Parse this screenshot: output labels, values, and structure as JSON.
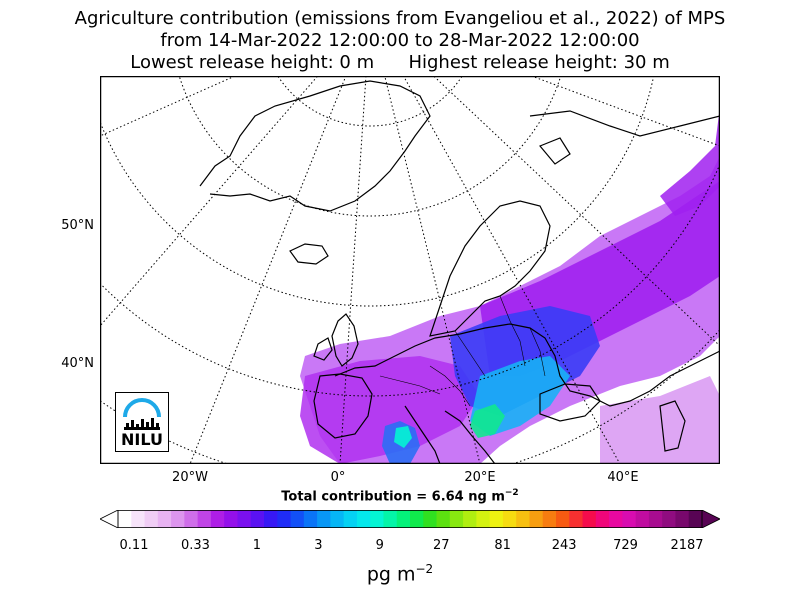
{
  "title": {
    "line1": "Agriculture contribution (emissions from Evangeliou et al., 2022) of MPS",
    "line2": "from 14-Mar-2022 12:00:00 to 28-Mar-2022 12:00:00",
    "line3": "Lowest release height: 0 m      Highest release height: 30 m"
  },
  "lat_labels": [
    "50°N",
    "40°N"
  ],
  "lon_labels": [
    "20°W",
    "0°",
    "20°E",
    "40°E"
  ],
  "total_label": "Total contribution = 6.64 ng m",
  "total_exp": "−2",
  "colorbar": {
    "ticks": [
      "0.11",
      "0.33",
      "1",
      "3",
      "9",
      "27",
      "81",
      "243",
      "729",
      "2187"
    ],
    "units_base": "pg m",
    "units_exp": "−2",
    "colors": [
      "#ffffff",
      "#f7e4fa",
      "#f0cdf5",
      "#e8b3f2",
      "#dd95ee",
      "#cf6ee9",
      "#c044e6",
      "#ae1ee6",
      "#9410ea",
      "#7a10ef",
      "#5a12f2",
      "#3718f5",
      "#1f2cf7",
      "#1250f7",
      "#0a74f7",
      "#0897f6",
      "#06b6f5",
      "#05d2f3",
      "#04e8ec",
      "#04f5d4",
      "#04f5a8",
      "#04f27a",
      "#10ea4c",
      "#30e020",
      "#5ce010",
      "#88e810",
      "#b0ee10",
      "#d4f210",
      "#eef210",
      "#f6dc10",
      "#f7bf10",
      "#f79e10",
      "#f77c10",
      "#f75a12",
      "#f73030",
      "#f50c4c",
      "#f0067a",
      "#e808a0",
      "#d80cb0",
      "#c00ca0",
      "#a80c90",
      "#900c80",
      "#78086c",
      "#580454"
    ]
  },
  "logo": {
    "text": "NILU"
  },
  "colors": {
    "plume_purple": "#a020f0",
    "plume_blue": "#1e60ff",
    "plume_cyan": "#00d8f0",
    "plume_green": "#00f090"
  }
}
